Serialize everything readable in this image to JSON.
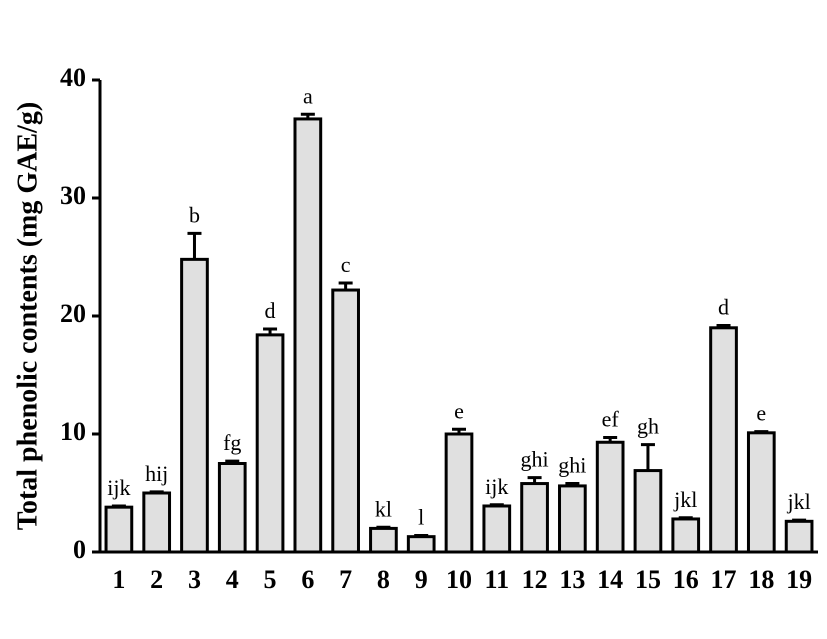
{
  "chart_data": {
    "type": "bar",
    "y_label": "Total phenolic contents (mg GAE/g)",
    "categories": [
      "1",
      "2",
      "3",
      "4",
      "5",
      "6",
      "7",
      "8",
      "9",
      "10",
      "11",
      "12",
      "13",
      "14",
      "15",
      "16",
      "17",
      "18",
      "19"
    ],
    "values": [
      3.8,
      5.0,
      24.8,
      7.5,
      18.4,
      36.7,
      22.2,
      2.0,
      1.3,
      10.0,
      3.9,
      5.8,
      5.6,
      9.3,
      6.9,
      2.8,
      19.0,
      10.1,
      2.6
    ],
    "errors": [
      0.1,
      0.1,
      2.2,
      0.2,
      0.5,
      0.4,
      0.6,
      0.1,
      0.1,
      0.4,
      0.1,
      0.5,
      0.2,
      0.4,
      2.2,
      0.1,
      0.2,
      0.1,
      0.1
    ],
    "annotations": [
      "ijk",
      "hij",
      "b",
      "fg",
      "d",
      "a",
      "c",
      "kl",
      "l",
      "e",
      "ijk",
      "ghi",
      "ghi",
      "ef",
      "gh",
      "jkl",
      "d",
      "e",
      "jkl"
    ],
    "color": "#e0e0e0",
    "ylim": [
      0,
      40
    ],
    "yticks": [
      0,
      10,
      20,
      30,
      40
    ]
  }
}
